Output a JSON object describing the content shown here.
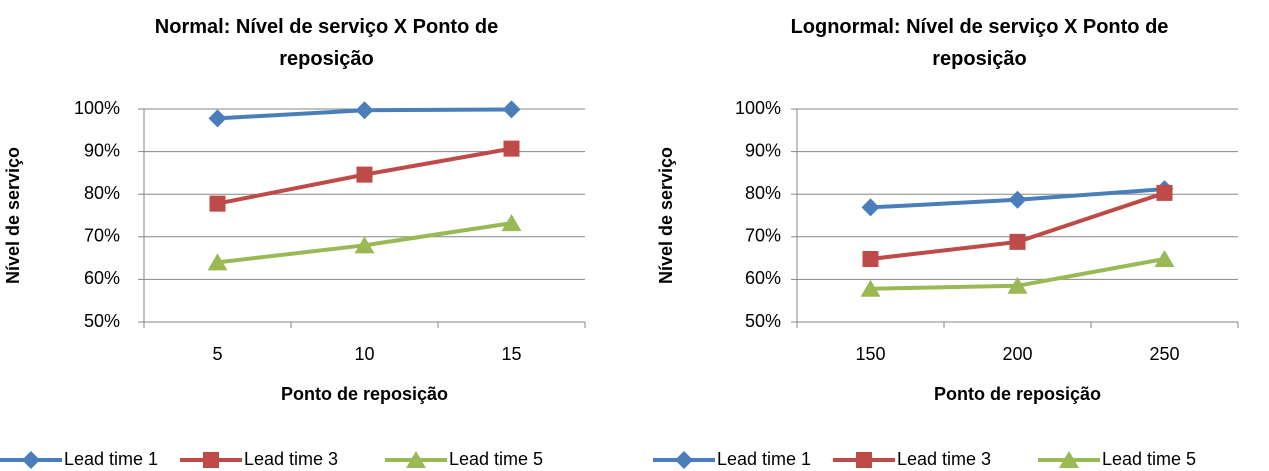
{
  "chart_data": [
    {
      "type": "line",
      "title": "Normal: Nível de serviço X Ponto de reposição",
      "xlabel": "Ponto de reposição",
      "ylabel": "Nível de serviço",
      "categories": [
        "5",
        "10",
        "15"
      ],
      "series": [
        {
          "name": "Lead time 1",
          "color": "#4a7ebb",
          "marker": "diamond",
          "values": [
            97.8,
            99.7,
            99.9
          ]
        },
        {
          "name": "Lead time 3",
          "color": "#be4b48",
          "marker": "square",
          "values": [
            77.8,
            84.6,
            90.7
          ]
        },
        {
          "name": "Lead time 5",
          "color": "#98b954",
          "marker": "triangle",
          "values": [
            64,
            68,
            73.2
          ]
        }
      ],
      "ylim": [
        50,
        100
      ],
      "yticks": [
        {
          "value": 50,
          "label": "50%"
        },
        {
          "value": 60,
          "label": "60%"
        },
        {
          "value": 70,
          "label": "70%"
        },
        {
          "value": 80,
          "label": "80%"
        },
        {
          "value": 90,
          "label": "90%"
        },
        {
          "value": 100,
          "label": "100%"
        }
      ],
      "grid": true,
      "legend": "bottom"
    },
    {
      "type": "line",
      "title": "Lognormal: Nível de serviço X Ponto de reposição",
      "xlabel": "Ponto de reposição",
      "ylabel": "Nível de serviço",
      "categories": [
        "150",
        "200",
        "250"
      ],
      "series": [
        {
          "name": "Lead time 1",
          "color": "#4a7ebb",
          "marker": "diamond",
          "values": [
            76.9,
            78.7,
            81.2
          ]
        },
        {
          "name": "Lead time 3",
          "color": "#be4b48",
          "marker": "square",
          "values": [
            64.8,
            68.8,
            80.3
          ]
        },
        {
          "name": "Lead time 5",
          "color": "#98b954",
          "marker": "triangle",
          "values": [
            57.8,
            58.5,
            64.8
          ]
        }
      ],
      "ylim": [
        50,
        100
      ],
      "yticks": [
        {
          "value": 50,
          "label": "50%"
        },
        {
          "value": 60,
          "label": "60%"
        },
        {
          "value": 70,
          "label": "70%"
        },
        {
          "value": 80,
          "label": "80%"
        },
        {
          "value": 90,
          "label": "90%"
        },
        {
          "value": 100,
          "label": "100%"
        }
      ],
      "grid": true,
      "legend": "bottom"
    }
  ]
}
